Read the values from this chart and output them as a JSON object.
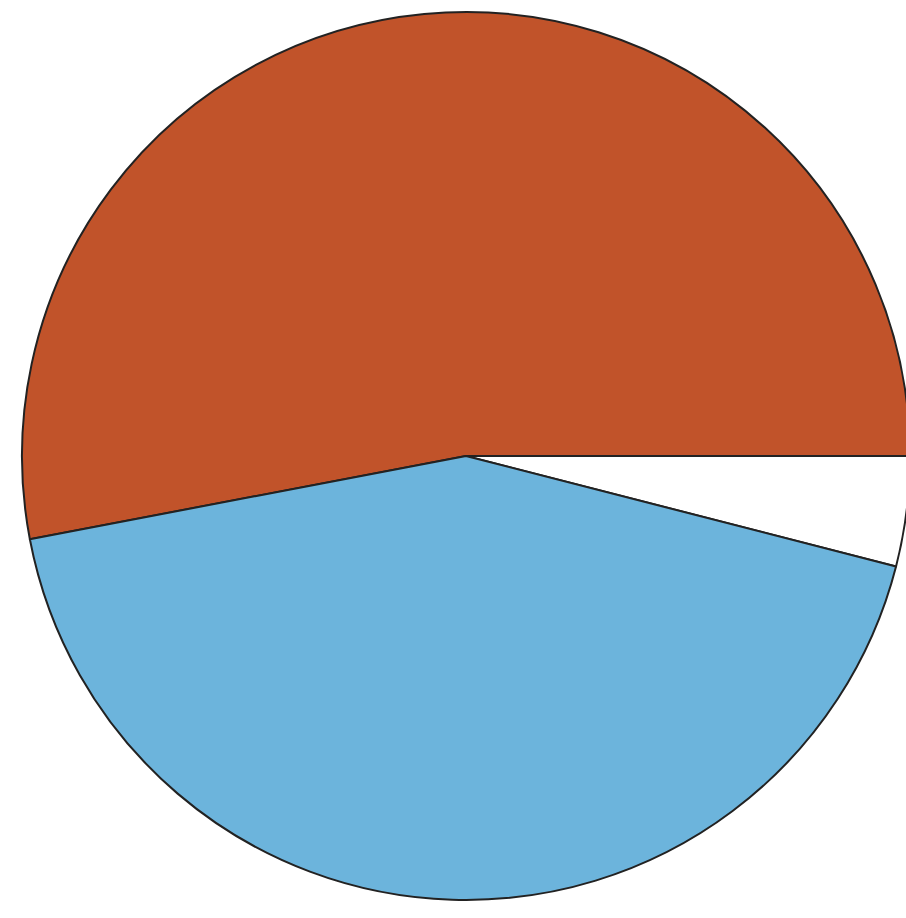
{
  "chart_data": {
    "type": "pie",
    "categories": [
      null,
      null,
      null
    ],
    "values": [
      53,
      4,
      43
    ],
    "colors": [
      "#c1532a",
      "#ffffff",
      "#6cb4dc"
    ]
  }
}
